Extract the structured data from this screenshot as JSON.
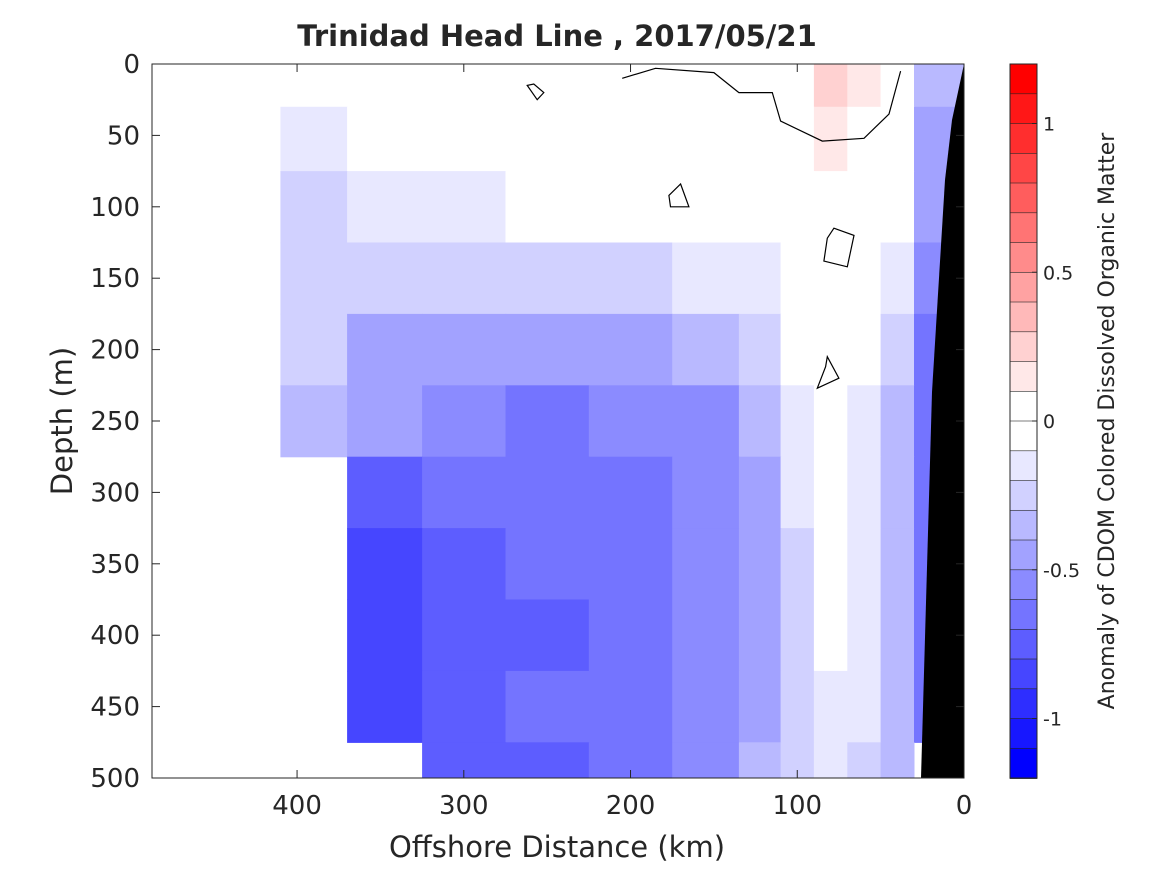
{
  "chart_data": {
    "type": "heatmap",
    "title": "Trinidad Head Line , 2017/05/21",
    "xlabel": "Offshore Distance (km)",
    "ylabel": "Depth (m)",
    "colorbar_label": "Anomaly of CDOM Colored Dissolved Organic Matter",
    "xlim": [
      487,
      0
    ],
    "ylim": [
      0,
      500
    ],
    "x_reversed": true,
    "y_reversed": true,
    "x_ticks": [
      400,
      300,
      200,
      100,
      0
    ],
    "x_tick_labels": [
      "400",
      "300",
      "200",
      "100",
      "0"
    ],
    "y_ticks": [
      0,
      50,
      100,
      150,
      200,
      250,
      300,
      350,
      400,
      450,
      500
    ],
    "y_tick_labels": [
      "0",
      "50",
      "100",
      "150",
      "200",
      "250",
      "300",
      "350",
      "400",
      "450",
      "500"
    ],
    "clim": [
      -1.2,
      1.2
    ],
    "colorbar_ticks": [
      1,
      0.5,
      0,
      -0.5,
      -1
    ],
    "colorbar_tick_labels": [
      "1",
      "0.5",
      "0",
      "-0.5",
      "-1"
    ],
    "contour_levels_step": 0.1,
    "zero_contour": "black line",
    "bathymetry_color": "#000000",
    "colormap": {
      "negative": "#0000ff",
      "zero": "#ffffff",
      "positive": "#ff0000"
    },
    "grid": false,
    "legend": "colorbar right",
    "approx_field": {
      "distance_km": [
        390,
        350,
        300,
        250,
        200,
        150,
        120,
        100,
        80,
        60,
        40,
        20
      ],
      "depth_m": [
        10,
        50,
        100,
        150,
        200,
        250,
        300,
        350,
        400,
        450,
        500
      ],
      "anomaly": [
        [
          -0.1,
          -0.05,
          -0.05,
          0.0,
          0.0,
          0.0,
          -0.05,
          0.0,
          0.2,
          0.15,
          0.0,
          -0.4
        ],
        [
          -0.15,
          -0.1,
          -0.05,
          0.0,
          0.0,
          0.0,
          -0.05,
          0.0,
          0.1,
          0.05,
          -0.05,
          -0.45
        ],
        [
          -0.25,
          -0.2,
          -0.15,
          -0.1,
          -0.05,
          -0.1,
          -0.1,
          -0.05,
          0.0,
          -0.05,
          -0.1,
          -0.5
        ],
        [
          -0.3,
          -0.3,
          -0.3,
          -0.3,
          -0.3,
          -0.2,
          -0.15,
          -0.1,
          0.0,
          -0.05,
          -0.2,
          -0.55
        ],
        [
          -0.3,
          -0.45,
          -0.5,
          -0.5,
          -0.45,
          -0.4,
          -0.3,
          -0.1,
          0.0,
          -0.1,
          -0.3,
          -0.65
        ],
        [
          -0.35,
          -0.5,
          -0.6,
          -0.65,
          -0.6,
          -0.55,
          -0.4,
          -0.15,
          -0.05,
          -0.15,
          -0.35,
          -0.7
        ],
        [
          null,
          -0.75,
          -0.7,
          -0.7,
          -0.65,
          -0.6,
          -0.45,
          -0.2,
          -0.05,
          -0.15,
          -0.4,
          -0.7
        ],
        [
          null,
          -0.85,
          -0.75,
          -0.7,
          -0.7,
          -0.6,
          -0.45,
          -0.25,
          -0.1,
          -0.15,
          -0.4,
          -0.7
        ],
        [
          null,
          -0.9,
          -0.75,
          -0.75,
          -0.65,
          -0.6,
          -0.45,
          -0.25,
          -0.1,
          -0.2,
          -0.4,
          -0.7
        ],
        [
          null,
          -0.85,
          -0.8,
          -0.7,
          -0.65,
          -0.55,
          -0.45,
          -0.25,
          -0.15,
          -0.2,
          -0.4,
          -0.7
        ],
        [
          null,
          null,
          -0.8,
          -0.75,
          -0.7,
          -0.55,
          -0.4,
          -0.25,
          -0.15,
          -0.25,
          -0.4,
          null
        ]
      ]
    }
  }
}
